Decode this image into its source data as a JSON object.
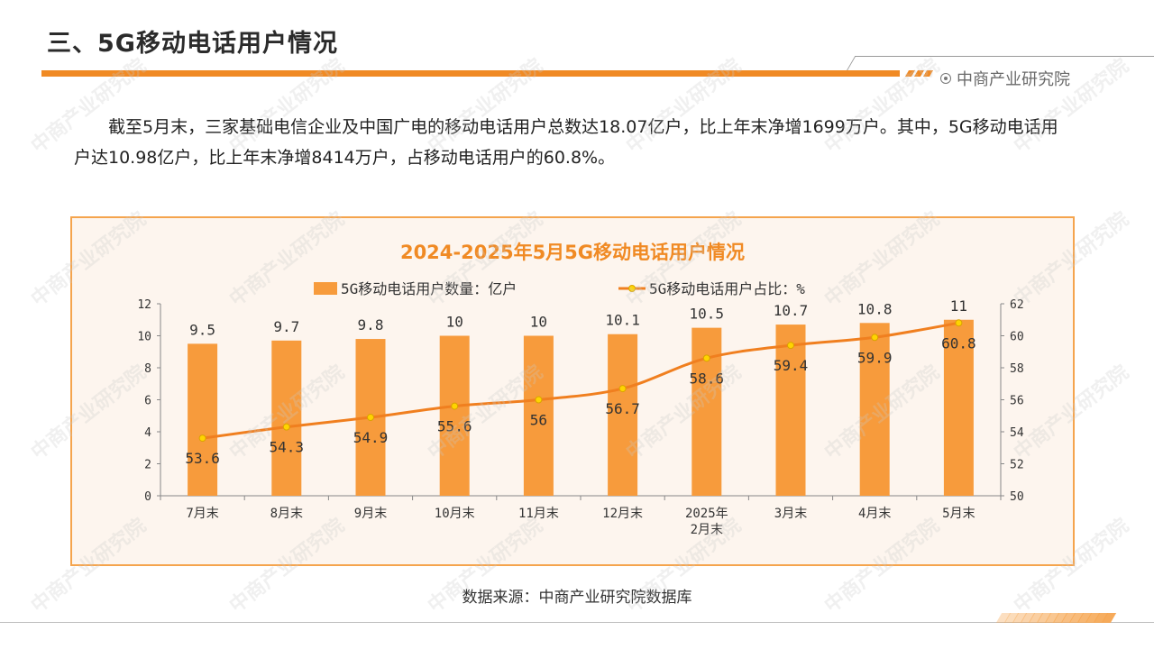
{
  "slide": {
    "title": "三、5G移动电话用户情况",
    "brand": "中商产业研究院",
    "brand_icon": "target-icon",
    "paragraph": "截至5月末，三家基础电信企业及中国广电的移动电话用户总数达18.07亿户，比上年末净增1699万户。其中，5G移动电话用户达10.98亿户，比上年末净增8414万户，占移动电话用户的60.8%。",
    "source": "数据来源：中商产业研究院数据库",
    "watermark": "中商产业研究院"
  },
  "colors": {
    "accent": "#f08a24",
    "bar": "#f79b3c",
    "line": "#f07f1f",
    "marker": "#ffd400",
    "frame": "#f5a44d"
  },
  "chart_data": {
    "type": "bar",
    "title": "2024-2025年5月5G移动电话用户情况",
    "categories": [
      [
        "7月末"
      ],
      [
        "8月末"
      ],
      [
        "9月末"
      ],
      [
        "10月末"
      ],
      [
        "11月末"
      ],
      [
        "12月末"
      ],
      [
        "2025年",
        "2月末"
      ],
      [
        "3月末"
      ],
      [
        "4月末"
      ],
      [
        "5月末"
      ]
    ],
    "series": [
      {
        "name": "5G移动电话用户数量：亿户",
        "type": "bar",
        "axis": "left",
        "values": [
          9.5,
          9.7,
          9.8,
          10,
          10,
          10.1,
          10.5,
          10.7,
          10.8,
          11
        ],
        "labels": [
          "9.5",
          "9.7",
          "9.8",
          "10",
          "10",
          "10.1",
          "10.5",
          "10.7",
          "10.8",
          "11"
        ]
      },
      {
        "name": "5G移动电话用户占比：%",
        "type": "line",
        "axis": "right",
        "values": [
          53.6,
          54.3,
          54.9,
          55.6,
          56,
          56.7,
          58.6,
          59.4,
          59.9,
          60.8
        ],
        "labels": [
          "53.6",
          "54.3",
          "54.9",
          "55.6",
          "56",
          "56.7",
          "58.6",
          "59.4",
          "59.9",
          "60.8"
        ]
      }
    ],
    "left_axis": {
      "min": 0,
      "max": 12,
      "step": 2,
      "ticks": [
        "0",
        "2",
        "4",
        "6",
        "8",
        "10",
        "12"
      ]
    },
    "right_axis": {
      "min": 50,
      "max": 62,
      "step": 2,
      "ticks": [
        "50",
        "52",
        "54",
        "56",
        "58",
        "60",
        "62"
      ]
    },
    "legend_position": "top",
    "grid": false
  }
}
